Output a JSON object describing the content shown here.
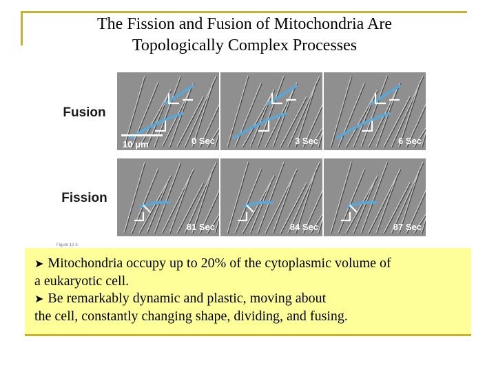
{
  "title": {
    "line1": "The Fission and Fusion of Mitochondria Are",
    "line2": "Topologically Complex Processes"
  },
  "figure": {
    "rows": [
      {
        "label": "Fusion",
        "times": [
          "0 Sec",
          "3 Sec",
          "6 Sec"
        ]
      },
      {
        "label": "Fission",
        "times": [
          "81 Sec",
          "84 Sec",
          "87 Sec"
        ]
      }
    ],
    "scale_label": "10 μm",
    "figure_note": "Figure 12-3",
    "highlight_color": "#5aa7d6"
  },
  "bullets": [
    {
      "icon": "arrow-bullet-icon",
      "line1": "Mitochondria occupy up to 20% of the cytoplasmic volume of",
      "line2": "a eukaryotic cell."
    },
    {
      "icon": "arrow-bullet-icon",
      "line1": "Be remarkably dynamic and plastic, moving about",
      "line2": "the cell, constantly changing shape, dividing, and fusing."
    }
  ],
  "colors": {
    "frame": "#c8b030",
    "textbox_bg": "#ffff99"
  }
}
